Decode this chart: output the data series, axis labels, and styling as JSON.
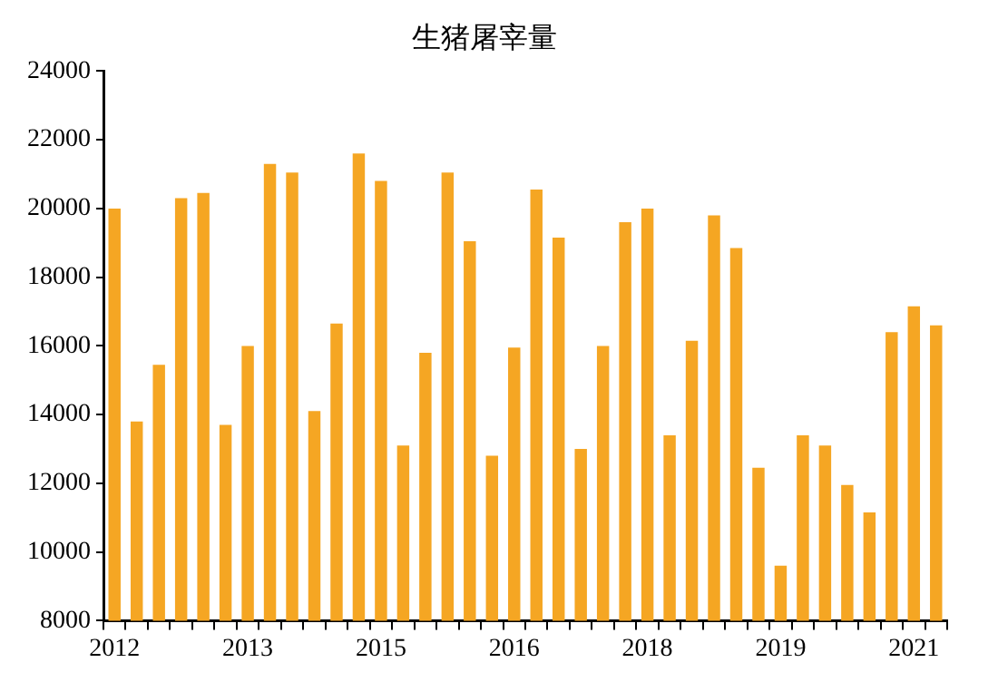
{
  "chart_data": {
    "type": "bar",
    "title": "生猪屠宰量",
    "categories": [
      "2012",
      null,
      null,
      null,
      null,
      null,
      "2013",
      null,
      null,
      null,
      null,
      null,
      "2015",
      null,
      null,
      null,
      null,
      null,
      "2016",
      null,
      null,
      null,
      null,
      null,
      "2018",
      null,
      null,
      null,
      null,
      null,
      "2019",
      null,
      null,
      null,
      null,
      null,
      "2021",
      null
    ],
    "values": [
      20000,
      13800,
      15450,
      20300,
      20450,
      13700,
      16000,
      21300,
      21050,
      14100,
      16650,
      21600,
      20800,
      13100,
      15800,
      21050,
      19050,
      12800,
      15950,
      20550,
      19150,
      13000,
      16000,
      19600,
      20000,
      13400,
      16150,
      19800,
      18850,
      12450,
      9600,
      13400,
      13100,
      11950,
      11150,
      16400,
      17150,
      16600
    ],
    "color": "#f5a623",
    "ylim": [
      8000,
      24000
    ],
    "yticks": [
      8000,
      10000,
      12000,
      14000,
      16000,
      18000,
      20000,
      22000,
      24000
    ],
    "grid": false,
    "legend": false
  }
}
